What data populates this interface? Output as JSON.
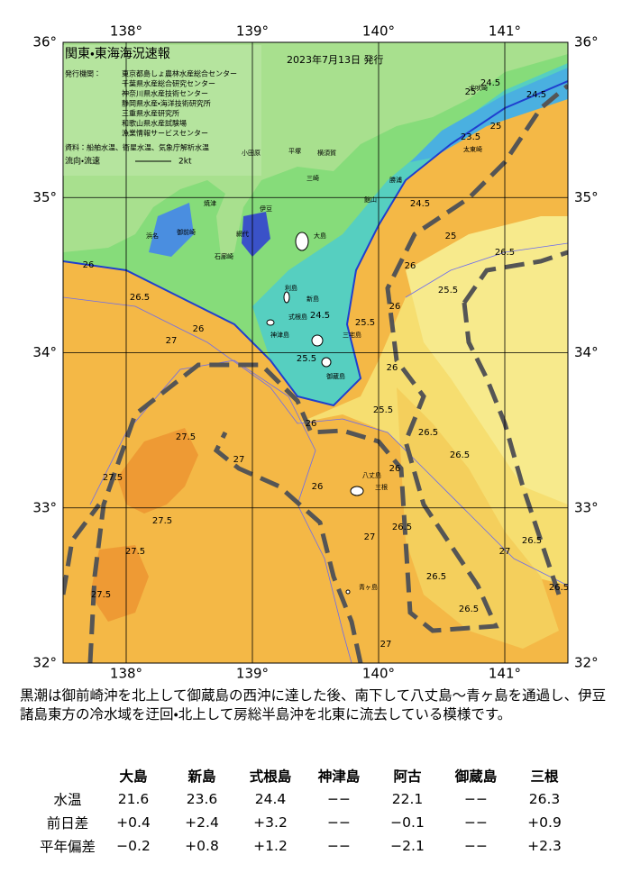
{
  "map": {
    "title": "関東・東海海況速報",
    "date": "2023年7月13日 発行",
    "issuer_label": "発行機関：",
    "issuers": [
      "東京都島しょ農林水産総合センター",
      "千葉県水産総合研究センター",
      "神奈川県水産技術センター",
      "静岡県水産・海洋技術研究所",
      "三重県水産研究所",
      "和歌山県水産試験場",
      "漁業情報サービスセンター"
    ],
    "source": "資料：船舶水温、衛星水温、気象庁解析水温",
    "current_legend": "流向・流速",
    "current_scale": "2kt",
    "lon_ticks": [
      {
        "value": 138,
        "label": "138°"
      },
      {
        "value": 139,
        "label": "139°"
      },
      {
        "value": 140,
        "label": "140°"
      },
      {
        "value": 141,
        "label": "141°"
      }
    ],
    "lat_ticks": [
      {
        "value": 36,
        "label": "36°"
      },
      {
        "value": 35,
        "label": "35°"
      },
      {
        "value": 34,
        "label": "34°"
      },
      {
        "value": 33,
        "label": "33°"
      },
      {
        "value": 32,
        "label": "32°"
      }
    ],
    "places": [
      "大島",
      "利島",
      "新島",
      "式根島",
      "三宅島",
      "神津島",
      "御蔵島",
      "八丈島",
      "三根",
      "青ヶ島",
      "石廊崎",
      "伊豆",
      "網代",
      "小田原",
      "平塚",
      "横須賀",
      "三崎",
      "館山",
      "勝浦",
      "太東崎",
      "犬吠崎",
      "焼津",
      "御前崎",
      "浜名"
    ],
    "contour_labels": [
      "24.5",
      "25",
      "24.5",
      "23.5",
      "25",
      "24.5",
      "25",
      "26",
      "25.5",
      "26",
      "24.5",
      "25.5",
      "26",
      "26.5",
      "26",
      "27",
      "25.5",
      "26",
      "26",
      "25.5",
      "26.5",
      "26",
      "26.5",
      "27.5",
      "27.5",
      "27.5",
      "27.5",
      "27.5",
      "27",
      "27",
      "26.5",
      "26.5",
      "26.5",
      "26.5",
      "26",
      "27",
      "26.5",
      "27",
      "26.5"
    ]
  },
  "description": "黒潮は御前崎沖を北上して御蔵島の西沖に達した後、南下して八丈島～青ヶ島を通過し、伊豆諸島東方の冷水域を迂回・北上して房総半島沖を北東に流去している模様です。",
  "table": {
    "header": [
      "大島",
      "新島",
      "式根島",
      "神津島",
      "阿古",
      "御蔵島",
      "三根"
    ],
    "rows": [
      [
        "水温",
        "21.6",
        "23.6",
        "24.4",
        "−−",
        "22.1",
        "−−",
        "26.3"
      ],
      [
        "前日差",
        "+0.4",
        "+2.4",
        "+3.2",
        "−−",
        "−0.1",
        "−−",
        "+0.9"
      ],
      [
        "平年偏差",
        "−0.2",
        "+0.8",
        "+1.2",
        "−−",
        "−2.1",
        "−−",
        "+2.3"
      ]
    ]
  }
}
